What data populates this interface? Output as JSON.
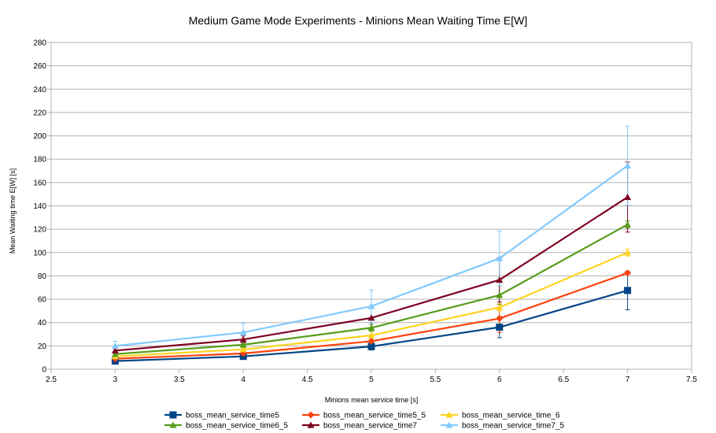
{
  "chart_data": {
    "type": "line",
    "title": "Medium Game Mode Experiments - Minions Mean Waiting Time E[W]",
    "xlabel": "Minions mean service time [s]",
    "ylabel": "Mean Waiting time E[W] [s]",
    "xlim": [
      2.5,
      7.5
    ],
    "ylim": [
      0,
      280
    ],
    "x_ticks": [
      "2.5",
      "3",
      "3.5",
      "4",
      "4.5",
      "5",
      "5.5",
      "6",
      "6.5",
      "7",
      "7.5"
    ],
    "y_ticks": [
      "0",
      "20",
      "40",
      "60",
      "80",
      "100",
      "120",
      "140",
      "160",
      "180",
      "200",
      "220",
      "240",
      "260",
      "280"
    ],
    "grid": "horizontal",
    "legend_position": "bottom",
    "x": [
      3,
      4,
      5,
      6,
      7
    ],
    "series": [
      {
        "name": "boss_mean_service_time5",
        "color": "#004586",
        "marker": "square",
        "values": [
          7,
          11,
          19.5,
          36,
          67.5
        ],
        "error": [
          1.5,
          2,
          3,
          9,
          16.5
        ]
      },
      {
        "name": "boss_mean_service_time5_5",
        "color": "#ff420e",
        "marker": "diamond",
        "values": [
          9,
          13.5,
          24,
          43.5,
          82.5
        ],
        "error": [
          1.5,
          2,
          3,
          12,
          1
        ]
      },
      {
        "name": "boss_mean_service_time_6",
        "color": "#ffd320",
        "marker": "triangle",
        "values": [
          11,
          17,
          29,
          53,
          100
        ],
        "error": [
          1.5,
          2,
          3,
          3,
          3
        ]
      },
      {
        "name": "boss_mean_service_time6_5",
        "color": "#579d1c",
        "marker": "triangle",
        "values": [
          13,
          21,
          35.5,
          63.5,
          124
        ],
        "error": [
          1.5,
          2.5,
          3,
          8,
          3
        ]
      },
      {
        "name": "boss_mean_service_time7",
        "color": "#7e0021",
        "marker": "triangle",
        "values": [
          16,
          25.5,
          44,
          76.5,
          147.5
        ],
        "error": [
          2,
          3,
          10,
          19,
          30
        ]
      },
      {
        "name": "boss_mean_service_time7_5",
        "color": "#83caff",
        "marker": "triangle",
        "values": [
          20,
          31.5,
          54,
          95,
          174.5
        ],
        "error": [
          4,
          8,
          14,
          23.5,
          34
        ]
      }
    ]
  }
}
